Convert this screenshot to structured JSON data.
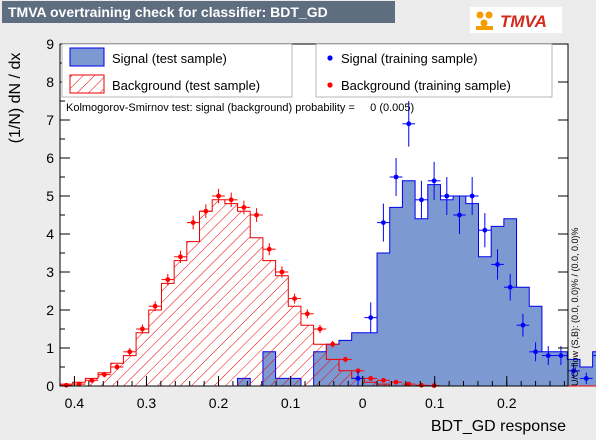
{
  "header": {
    "title": "TMVA overtraining check for classifier: BDT_GD",
    "logo_text": "TMVA"
  },
  "colors": {
    "signal_fill": "#7d99d1",
    "signal_line": "#0000ee",
    "background_hatch": "#ee0000",
    "signal_marker": "#0000ff",
    "background_marker": "#ff0000",
    "logo_orange": "#f59c00"
  },
  "chart_data": {
    "type": "histogram",
    "xlabel": "BDT_GD response",
    "ylabel": "(1/N) dN / dx",
    "xlim": [
      -0.42,
      0.285
    ],
    "ylim": [
      0,
      9
    ],
    "x_ticks": [
      -0.4,
      -0.3,
      -0.2,
      -0.1,
      0,
      0.1,
      0.2
    ],
    "x_tick_labels": [
      "0.4",
      "0.3",
      "0.2",
      "0.1",
      "0",
      "0.1",
      "0.2"
    ],
    "y_ticks": [
      0,
      1,
      2,
      3,
      4,
      5,
      6,
      7,
      8,
      9
    ],
    "bin_edges_start": -0.42,
    "bin_width": 0.0176,
    "annotation": "Kolmogorov-Smirnov test: signal (background) probability =     0 (0.005)",
    "side_label": "U/O-flow (S,B): (0.0, 0.0)% / (0.0, 0.0)%",
    "legend": {
      "signal_test": "Signal (test sample)",
      "background_test": "Background (test sample)",
      "signal_train": "Signal (training sample)",
      "background_train": "Background (training sample)"
    },
    "series": [
      {
        "name": "Signal (test sample)",
        "style": "filled-histogram",
        "values": [
          0,
          0,
          0,
          0,
          0,
          0,
          0,
          0,
          0,
          0,
          0,
          0,
          0,
          0,
          0.2,
          0,
          0.9,
          0.2,
          0.2,
          0,
          0.9,
          1.1,
          1.2,
          1.4,
          1.4,
          3.5,
          4.7,
          5.4,
          4.4,
          5.3,
          4.9,
          5.0,
          4.8,
          3.4,
          4.2,
          4.4,
          2.6,
          2.1,
          0.9,
          0.9,
          0.7,
          0.5,
          0.9
        ]
      },
      {
        "name": "Background (test sample)",
        "style": "hatched-histogram",
        "values": [
          0.05,
          0.1,
          0.2,
          0.35,
          0.6,
          0.8,
          1.4,
          2.0,
          2.7,
          3.3,
          3.8,
          4.6,
          4.9,
          4.8,
          4.6,
          3.9,
          3.3,
          2.9,
          2.1,
          1.6,
          1.1,
          0.7,
          0.4,
          0.2,
          0.1,
          0.05,
          0,
          0,
          0,
          0,
          0,
          0,
          0,
          0,
          0,
          0,
          0,
          0,
          0,
          0,
          0,
          0,
          0
        ]
      },
      {
        "name": "Signal (training sample)",
        "style": "points",
        "values": [
          null,
          null,
          null,
          null,
          null,
          null,
          null,
          null,
          null,
          null,
          null,
          null,
          null,
          null,
          null,
          null,
          null,
          null,
          null,
          null,
          null,
          null,
          null,
          0.2,
          1.8,
          4.3,
          5.5,
          6.9,
          4.9,
          5.4,
          5.0,
          4.5,
          5.0,
          4.1,
          3.2,
          2.6,
          1.6,
          0.9,
          0.8,
          0.8,
          0.4,
          0.2,
          0.8
        ],
        "errors": [
          null,
          null,
          null,
          null,
          null,
          null,
          null,
          null,
          null,
          null,
          null,
          null,
          null,
          null,
          null,
          null,
          null,
          null,
          null,
          null,
          null,
          null,
          null,
          0.2,
          0.4,
          0.5,
          0.5,
          0.6,
          0.5,
          0.5,
          0.5,
          0.5,
          0.5,
          0.45,
          0.4,
          0.35,
          0.3,
          0.25,
          0.25,
          0.25,
          0.2,
          0.15,
          0.25
        ]
      },
      {
        "name": "Background (training sample)",
        "style": "points",
        "values": [
          0.02,
          0.05,
          0.15,
          0.3,
          0.5,
          0.9,
          1.5,
          2.1,
          2.8,
          3.4,
          4.3,
          4.6,
          5.0,
          4.9,
          4.7,
          4.5,
          3.6,
          3.0,
          2.3,
          1.9,
          1.5,
          1.1,
          0.7,
          0.4,
          0.2,
          0.15,
          0.1,
          0.05,
          0.02,
          0.01,
          null,
          null,
          null,
          null,
          null,
          null,
          null,
          null,
          null,
          null,
          null,
          null,
          null
        ],
        "errors": [
          0.02,
          0.03,
          0.05,
          0.07,
          0.08,
          0.1,
          0.12,
          0.13,
          0.15,
          0.16,
          0.18,
          0.18,
          0.19,
          0.19,
          0.18,
          0.18,
          0.16,
          0.15,
          0.13,
          0.12,
          0.11,
          0.09,
          0.07,
          0.05,
          0.04,
          0.03,
          0.03,
          0.02,
          0.01,
          0.01,
          null,
          null,
          null,
          null,
          null,
          null,
          null,
          null,
          null,
          null,
          null,
          null,
          null
        ]
      }
    ]
  }
}
